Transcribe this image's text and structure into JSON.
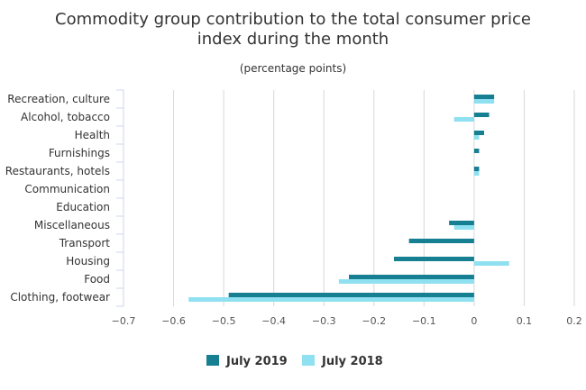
{
  "chart_data": {
    "type": "bar",
    "orientation": "horizontal",
    "title_lines": [
      "Commodity group contribution to the total consumer price",
      "index during the month"
    ],
    "subtitle": "(percentage points)",
    "categories": [
      "Recreation, culture",
      "Alcohol, tobacco",
      "Health",
      "Furnishings",
      "Restaurants, hotels",
      "Communication",
      "Education",
      "Miscellaneous",
      "Transport",
      "Housing",
      "Food",
      "Clothing, footwear"
    ],
    "series": [
      {
        "name": "July 2019",
        "color": "#167f92",
        "values": [
          0.04,
          0.03,
          0.02,
          0.01,
          0.01,
          0.0,
          0.0,
          -0.05,
          -0.13,
          -0.16,
          -0.25,
          -0.49
        ]
      },
      {
        "name": "July 2018",
        "color": "#8fe0f0",
        "values": [
          0.04,
          -0.04,
          0.01,
          0.0,
          0.01,
          0.0,
          0.0,
          -0.04,
          0.0,
          0.07,
          -0.27,
          -0.57
        ]
      }
    ],
    "xlim": [
      -0.7,
      0.2
    ],
    "xticks": [
      -0.7,
      -0.6,
      -0.5,
      -0.4,
      -0.3,
      -0.2,
      -0.1,
      0,
      0.1,
      0.2
    ],
    "grid": true,
    "legend_position": "bottom"
  }
}
